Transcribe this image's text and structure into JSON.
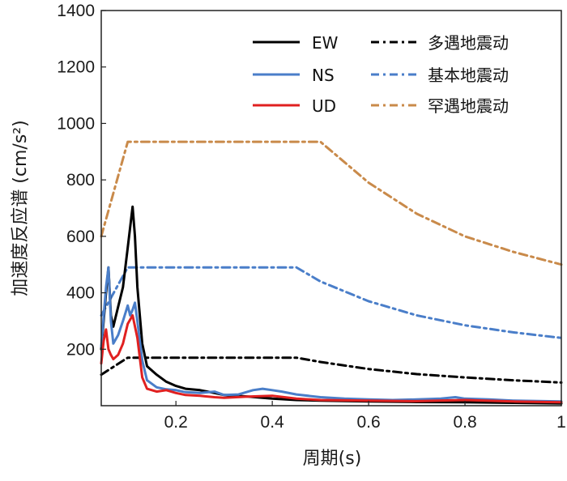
{
  "chart_data": {
    "type": "line",
    "xlabel": "周期(s)",
    "ylabel": "加速度反应谱 (cm/s²)",
    "xlim": [
      0.045,
      1.0
    ],
    "ylim": [
      0,
      1400
    ],
    "x_ticks": [
      {
        "value": 0.2,
        "label": "0.2"
      },
      {
        "value": 0.4,
        "label": "0.4"
      },
      {
        "value": 0.6,
        "label": "0.6"
      },
      {
        "value": 0.8,
        "label": "0.8"
      },
      {
        "value": 1.0,
        "label": "1"
      }
    ],
    "y_ticks": [
      {
        "value": 200,
        "label": "200"
      },
      {
        "value": 400,
        "label": "400"
      },
      {
        "value": 600,
        "label": "600"
      },
      {
        "value": 800,
        "label": "800"
      },
      {
        "value": 1000,
        "label": "1000"
      },
      {
        "value": 1200,
        "label": "1200"
      },
      {
        "value": 1400,
        "label": "1400"
      }
    ],
    "legend_position": "top-right",
    "series": [
      {
        "name": "EW",
        "color": "#000000",
        "dash": "solid",
        "points": [
          [
            0.045,
            200
          ],
          [
            0.055,
            400
          ],
          [
            0.06,
            490
          ],
          [
            0.065,
            320
          ],
          [
            0.07,
            280
          ],
          [
            0.08,
            350
          ],
          [
            0.09,
            420
          ],
          [
            0.1,
            560
          ],
          [
            0.11,
            705
          ],
          [
            0.115,
            600
          ],
          [
            0.12,
            420
          ],
          [
            0.13,
            220
          ],
          [
            0.14,
            140
          ],
          [
            0.16,
            110
          ],
          [
            0.18,
            85
          ],
          [
            0.2,
            70
          ],
          [
            0.22,
            60
          ],
          [
            0.25,
            55
          ],
          [
            0.28,
            45
          ],
          [
            0.3,
            38
          ],
          [
            0.35,
            32
          ],
          [
            0.4,
            25
          ],
          [
            0.45,
            20
          ],
          [
            0.5,
            18
          ],
          [
            0.6,
            15
          ],
          [
            0.7,
            13
          ],
          [
            0.8,
            12
          ],
          [
            0.9,
            10
          ],
          [
            1.0,
            8
          ]
        ]
      },
      {
        "name": "NS",
        "color": "#4a7ec9",
        "dash": "solid",
        "points": [
          [
            0.045,
            210
          ],
          [
            0.055,
            420
          ],
          [
            0.06,
            490
          ],
          [
            0.065,
            300
          ],
          [
            0.07,
            220
          ],
          [
            0.08,
            250
          ],
          [
            0.09,
            300
          ],
          [
            0.1,
            355
          ],
          [
            0.105,
            320
          ],
          [
            0.11,
            340
          ],
          [
            0.115,
            365
          ],
          [
            0.12,
            300
          ],
          [
            0.13,
            160
          ],
          [
            0.14,
            90
          ],
          [
            0.16,
            65
          ],
          [
            0.18,
            58
          ],
          [
            0.2,
            55
          ],
          [
            0.22,
            48
          ],
          [
            0.25,
            45
          ],
          [
            0.28,
            50
          ],
          [
            0.3,
            38
          ],
          [
            0.33,
            40
          ],
          [
            0.36,
            55
          ],
          [
            0.38,
            60
          ],
          [
            0.4,
            55
          ],
          [
            0.42,
            50
          ],
          [
            0.45,
            40
          ],
          [
            0.5,
            30
          ],
          [
            0.55,
            25
          ],
          [
            0.6,
            22
          ],
          [
            0.65,
            20
          ],
          [
            0.7,
            22
          ],
          [
            0.75,
            25
          ],
          [
            0.78,
            30
          ],
          [
            0.8,
            25
          ],
          [
            0.85,
            22
          ],
          [
            0.9,
            18
          ],
          [
            1.0,
            15
          ]
        ]
      },
      {
        "name": "UD",
        "color": "#e02020",
        "dash": "solid",
        "points": [
          [
            0.045,
            150
          ],
          [
            0.05,
            230
          ],
          [
            0.055,
            270
          ],
          [
            0.06,
            200
          ],
          [
            0.065,
            180
          ],
          [
            0.07,
            165
          ],
          [
            0.08,
            180
          ],
          [
            0.09,
            220
          ],
          [
            0.1,
            290
          ],
          [
            0.11,
            320
          ],
          [
            0.12,
            240
          ],
          [
            0.13,
            100
          ],
          [
            0.14,
            60
          ],
          [
            0.16,
            50
          ],
          [
            0.18,
            55
          ],
          [
            0.2,
            45
          ],
          [
            0.22,
            38
          ],
          [
            0.25,
            35
          ],
          [
            0.28,
            30
          ],
          [
            0.3,
            28
          ],
          [
            0.35,
            32
          ],
          [
            0.4,
            35
          ],
          [
            0.45,
            25
          ],
          [
            0.5,
            20
          ],
          [
            0.6,
            18
          ],
          [
            0.7,
            16
          ],
          [
            0.8,
            20
          ],
          [
            0.9,
            15
          ],
          [
            1.0,
            12
          ]
        ]
      },
      {
        "name": "多遇地震动",
        "color": "#000000",
        "dash": "dashdot",
        "points": [
          [
            0.045,
            110
          ],
          [
            0.1,
            170
          ],
          [
            0.45,
            170
          ],
          [
            0.5,
            155
          ],
          [
            0.6,
            130
          ],
          [
            0.7,
            112
          ],
          [
            0.8,
            100
          ],
          [
            0.9,
            90
          ],
          [
            1.0,
            82
          ]
        ]
      },
      {
        "name": "基本地震动",
        "color": "#4a7ec9",
        "dash": "dashdot",
        "points": [
          [
            0.045,
            320
          ],
          [
            0.1,
            490
          ],
          [
            0.45,
            490
          ],
          [
            0.5,
            440
          ],
          [
            0.6,
            370
          ],
          [
            0.7,
            320
          ],
          [
            0.8,
            285
          ],
          [
            0.9,
            260
          ],
          [
            1.0,
            240
          ]
        ]
      },
      {
        "name": "罕遇地震动",
        "color": "#c98a4a",
        "dash": "dashdot",
        "points": [
          [
            0.045,
            600
          ],
          [
            0.1,
            935
          ],
          [
            0.5,
            935
          ],
          [
            0.6,
            790
          ],
          [
            0.7,
            680
          ],
          [
            0.8,
            600
          ],
          [
            0.9,
            545
          ],
          [
            1.0,
            500
          ]
        ]
      }
    ]
  }
}
